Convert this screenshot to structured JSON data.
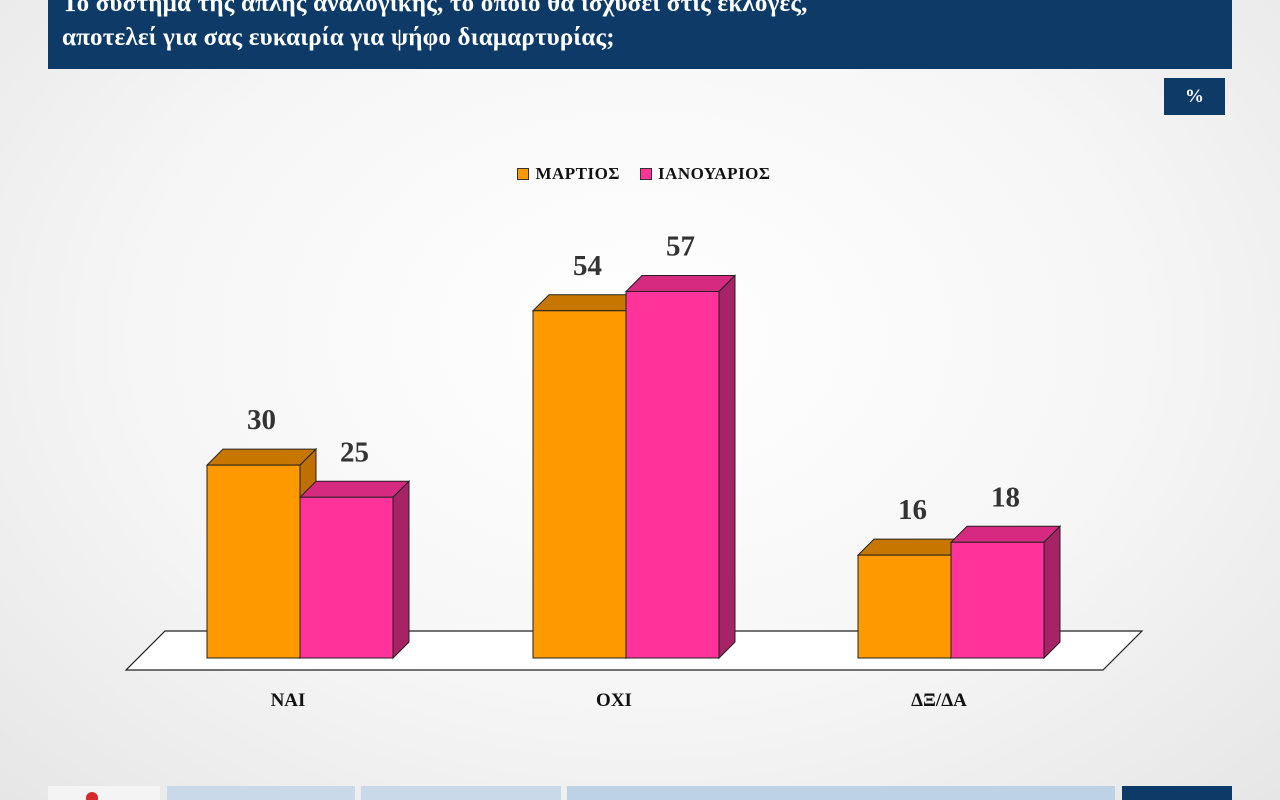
{
  "header": {
    "title_lines": [
      "Το σύστημα της απλής αναλογικής, το οποίο θα ισχύσει στις εκλογές,",
      "αποτελεί για σας ευκαιρία για ψήφο διαμαρτυρίας;"
    ],
    "unit_badge": "%"
  },
  "colors": {
    "title_bg": "#0d3a66",
    "series_1": "#ff9900",
    "series_2": "#ff3399"
  },
  "chart_data": {
    "type": "bar",
    "title": "Το σύστημα της απλής αναλογικής, το οποίο θα ισχύσει στις εκλογές, αποτελεί για σας ευκαιρία για ψήφο διαμαρτυρίας;",
    "categories": [
      "ΝΑΙ",
      "ΟΧΙ",
      "ΔΞ/ΔΑ"
    ],
    "series": [
      {
        "name": "ΜΑΡΤΙΟΣ",
        "values": [
          30,
          54,
          16
        ]
      },
      {
        "name": "ΙΑΝΟΥΑΡΙΟΣ",
        "values": [
          25,
          57,
          18
        ]
      }
    ],
    "unit": "%",
    "legend": "top-center",
    "grid": false,
    "style": "3d"
  }
}
